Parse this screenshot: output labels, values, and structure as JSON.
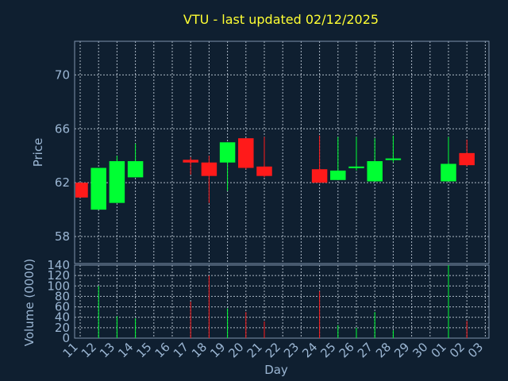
{
  "chart_data": {
    "type": "candlestick",
    "title": "VTU - last updated 02/12/2025",
    "xlabel": "Day",
    "ylabel": "Price",
    "volume_label": "Volume (0000)",
    "grid": true,
    "price_ylim": [
      56.0,
      72.5
    ],
    "price_ticks": [
      58,
      62,
      66,
      70
    ],
    "volume_ylim": [
      0,
      140
    ],
    "volume_ticks": [
      0,
      20,
      40,
      60,
      80,
      100,
      120,
      140
    ],
    "x_ticks": [
      "11",
      "12",
      "13",
      "14",
      "15",
      "16",
      "17",
      "18",
      "19",
      "20",
      "21",
      "22",
      "23",
      "24",
      "25",
      "26",
      "27",
      "28",
      "29",
      "30",
      "01",
      "02",
      "03"
    ],
    "up_color": "#00ff33",
    "down_color": "#ff1a1a",
    "candles": [
      {
        "day": "11",
        "open": 62.0,
        "high": 62.0,
        "low": 60.9,
        "close": 60.9,
        "volume": 0
      },
      {
        "day": "12",
        "open": 60.0,
        "high": 63.1,
        "low": 60.0,
        "close": 63.1,
        "volume": 100
      },
      {
        "day": "13",
        "open": 60.5,
        "high": 64.0,
        "low": 60.5,
        "close": 63.6,
        "volume": 42
      },
      {
        "day": "14",
        "open": 62.4,
        "high": 64.9,
        "low": 62.4,
        "close": 63.6,
        "volume": 38
      },
      {
        "day": "17",
        "open": 63.7,
        "high": 63.9,
        "low": 62.6,
        "close": 63.5,
        "volume": 70
      },
      {
        "day": "18",
        "open": 63.5,
        "high": 64.0,
        "low": 60.5,
        "close": 62.5,
        "volume": 120
      },
      {
        "day": "19",
        "open": 63.5,
        "high": 65.0,
        "low": 61.4,
        "close": 65.0,
        "volume": 57
      },
      {
        "day": "20",
        "open": 65.3,
        "high": 65.3,
        "low": 63.0,
        "close": 63.1,
        "volume": 50
      },
      {
        "day": "21",
        "open": 63.2,
        "high": 65.4,
        "low": 62.4,
        "close": 62.5,
        "volume": 32
      },
      {
        "day": "24",
        "open": 63.0,
        "high": 65.5,
        "low": 62.0,
        "close": 62.0,
        "volume": 90
      },
      {
        "day": "25",
        "open": 62.2,
        "high": 65.4,
        "low": 62.2,
        "close": 62.9,
        "volume": 25
      },
      {
        "day": "26",
        "open": 63.1,
        "high": 65.4,
        "low": 62.9,
        "close": 63.2,
        "volume": 20
      },
      {
        "day": "27",
        "open": 62.1,
        "high": 65.3,
        "low": 62.1,
        "close": 63.6,
        "volume": 50
      },
      {
        "day": "28",
        "open": 63.7,
        "high": 65.5,
        "low": 63.5,
        "close": 63.8,
        "volume": 15
      },
      {
        "day": "01",
        "open": 62.1,
        "high": 65.4,
        "low": 62.1,
        "close": 63.4,
        "volume": 140
      },
      {
        "day": "02",
        "open": 64.2,
        "high": 65.2,
        "low": 63.2,
        "close": 63.3,
        "volume": 33
      }
    ]
  }
}
